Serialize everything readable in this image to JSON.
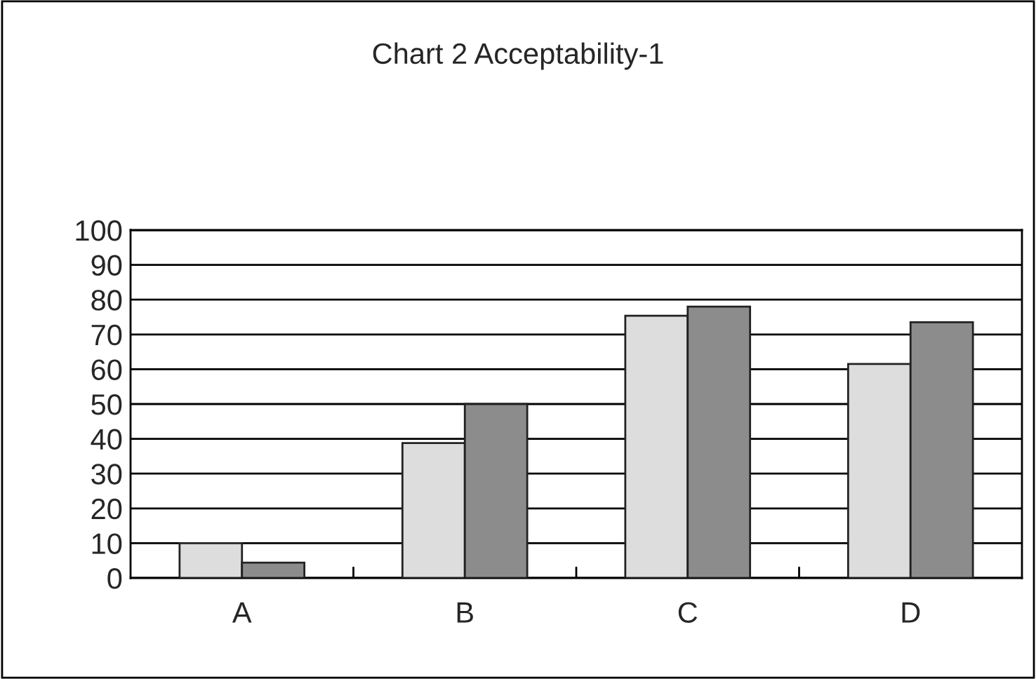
{
  "chart_data": {
    "type": "bar",
    "title": "Chart 2 Acceptability-1",
    "categories": [
      "A",
      "B",
      "C",
      "D"
    ],
    "series": [
      {
        "color": "#dddddd",
        "values": [
          10,
          38.8,
          75.4,
          61.5
        ]
      },
      {
        "color": "#8c8c8c",
        "values": [
          4.4,
          50,
          78,
          73.5
        ]
      }
    ],
    "ylim": [
      0,
      100
    ],
    "yticks": [
      0,
      10,
      20,
      30,
      40,
      50,
      60,
      70,
      80,
      90,
      100
    ],
    "grid": "y",
    "legend": false
  }
}
